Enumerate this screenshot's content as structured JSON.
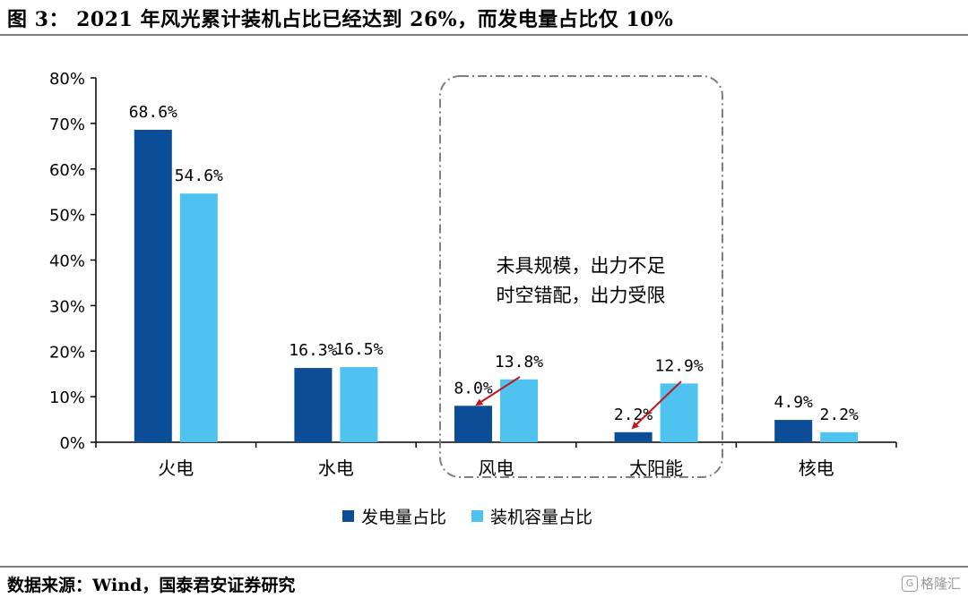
{
  "header": {
    "title": "图 3： 2021 年风光累计装机占比已经达到 26%，而发电量占比仅 10%"
  },
  "footer": {
    "source": "数据来源：Wind，国泰君安证券研究",
    "watermark": "格隆汇"
  },
  "annotation": {
    "line1": "未具规模，出力不足",
    "line2": "时空错配，出力受限"
  },
  "colors": {
    "series1": "#0b4d97",
    "series2": "#4fc3ef",
    "arrow": "#c0161e",
    "axis": "#000000",
    "box": "#7f7f7f"
  },
  "chart_data": {
    "type": "bar",
    "categories": [
      "火电",
      "水电",
      "风电",
      "太阳能",
      "核电"
    ],
    "series": [
      {
        "name": "发电量占比",
        "values": [
          68.6,
          16.3,
          8.0,
          2.2,
          4.9
        ],
        "labels": [
          "68.6%",
          "16.3%",
          "8.0%",
          "2.2%",
          "4.9%"
        ]
      },
      {
        "name": "装机容量占比",
        "values": [
          54.6,
          16.5,
          13.8,
          12.9,
          2.2
        ],
        "labels": [
          "54.6%",
          "16.5%",
          "13.8%",
          "12.9%",
          "2.2%"
        ]
      }
    ],
    "yticks": [
      "0%",
      "10%",
      "20%",
      "30%",
      "40%",
      "50%",
      "60%",
      "70%",
      "80%"
    ],
    "ylim": [
      0,
      80
    ],
    "legend_position": "bottom"
  }
}
